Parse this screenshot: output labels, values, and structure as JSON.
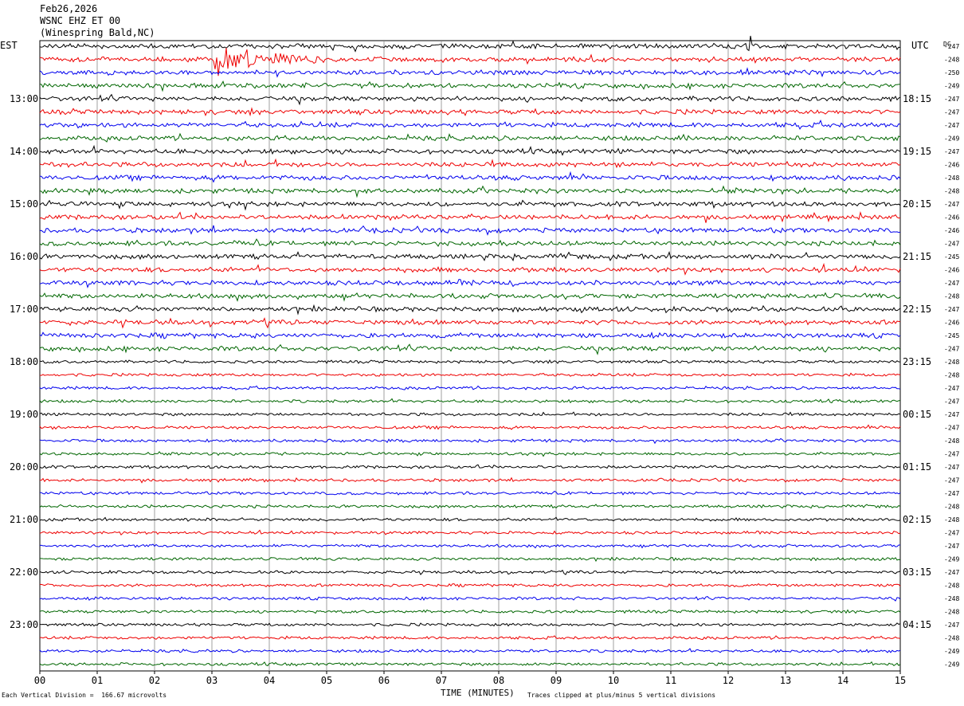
{
  "header": {
    "date": "Feb26,2026",
    "station": "WSNC EHZ ET 00",
    "location": "(Winespring Bald,NC)"
  },
  "left_axis_label": "EST",
  "right_axis_label": "UTC",
  "dc_label": "DC",
  "footer": {
    "vertical_division": "Each Vertical Division =  166.67 microvolts",
    "clipping_note": "Traces clipped at plus/minus 5 vertical divisions"
  },
  "colors": {
    "trace_cycle": [
      "#000000",
      "#ee0000",
      "#0000ee",
      "#006600"
    ],
    "grid": "#888888"
  },
  "chart_data": {
    "type": "line",
    "title": "",
    "xlabel": "TIME (MINUTES)",
    "ylabel": "",
    "x_ticks": [
      "00",
      "01",
      "02",
      "03",
      "04",
      "05",
      "06",
      "07",
      "08",
      "09",
      "10",
      "11",
      "12",
      "13",
      "14",
      "15"
    ],
    "xlim": [
      0,
      15
    ],
    "minutes_per_trace": 15,
    "trace_count": 48,
    "est_hour_labels": [
      "13:00",
      "14:00",
      "15:00",
      "16:00",
      "17:00",
      "18:00",
      "19:00",
      "20:00",
      "21:00",
      "22:00",
      "23:00"
    ],
    "utc_hour_labels": [
      "18:15",
      "19:15",
      "20:15",
      "21:15",
      "22:15",
      "23:15",
      "00:15",
      "01:15",
      "02:15",
      "03:15",
      "04:15"
    ],
    "dc_offsets": [
      "-247",
      "-248",
      "-250",
      "-249",
      "-247",
      "-247",
      "-247",
      "-249",
      "-247",
      "-246",
      "-248",
      "-248",
      "-247",
      "-246",
      "-246",
      "-247",
      "-245",
      "-246",
      "-247",
      "-248",
      "-247",
      "-246",
      "-245",
      "-247",
      "-248",
      "-248",
      "-247",
      "-247",
      "-247",
      "-247",
      "-248",
      "-247",
      "-247",
      "-247",
      "-247",
      "-248",
      "-248",
      "-247",
      "-247",
      "-249",
      "-247",
      "-248",
      "-248",
      "-248",
      "-247",
      "-248",
      "-249",
      "-249"
    ],
    "events": [
      {
        "trace": 1,
        "start_minute": 3.05,
        "end_minute": 4.95,
        "peak_minute": 3.1
      },
      {
        "trace": 0,
        "start_minute": 12.3,
        "end_minute": 12.4,
        "peak_minute": 12.33
      }
    ]
  }
}
